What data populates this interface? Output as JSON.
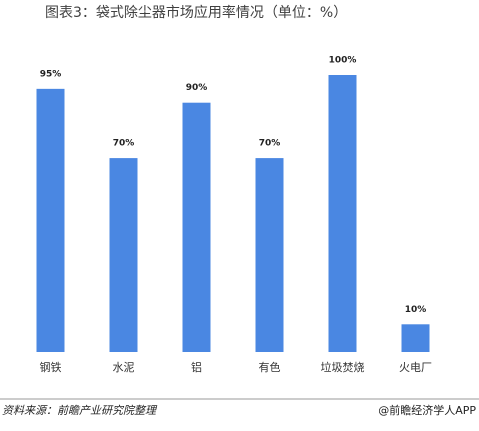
{
  "chart_data": {
    "type": "bar",
    "title": "图表3：袋式除尘器市场应用率情况（单位：%）",
    "categories": [
      "钢铁",
      "水泥",
      "铝",
      "有色",
      "垃圾焚烧",
      "火电厂"
    ],
    "values": [
      95,
      70,
      90,
      70,
      100,
      10
    ],
    "value_labels": [
      "95%",
      "70%",
      "90%",
      "70%",
      "100%",
      "10%"
    ],
    "color": "#4a87e2",
    "source": "资料来源：前瞻产业研究院整理",
    "credit": "@前瞻经济学人APP"
  }
}
